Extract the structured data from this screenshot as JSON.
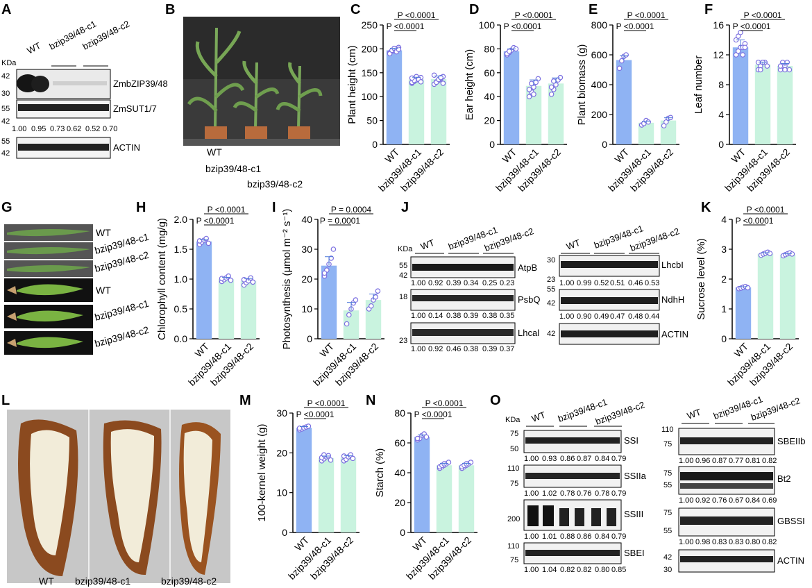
{
  "panel_labels": [
    "A",
    "B",
    "C",
    "D",
    "E",
    "F",
    "G",
    "H",
    "I",
    "J",
    "K",
    "L",
    "M",
    "N",
    "O"
  ],
  "genotypes": [
    "WT",
    "bzip39/48-c1",
    "bzip39/48-c2"
  ],
  "colors": {
    "wt": "#8fb3f3",
    "mutant": "#c9f3df",
    "dot": "#7b6fe0"
  },
  "blot_A": {
    "kda": "KDa",
    "lanes": [
      "WT",
      "bzip39/48-c1",
      "bzip39/48-c2"
    ],
    "rows": [
      {
        "name": "ZmbZIP39/48",
        "markers": [
          "42",
          "30"
        ]
      },
      {
        "name": "ZmSUT1/7",
        "markers": [
          "55",
          "42"
        ],
        "ratios": [
          "1.00",
          "0.95",
          "0.73",
          "0.62",
          "0.52",
          "0.70"
        ]
      },
      {
        "name": "ACTIN",
        "markers": [
          "55",
          "42"
        ]
      }
    ]
  },
  "plant_B": {
    "labels": [
      "WT",
      "bzip39/48-c1",
      "bzip39/48-c2"
    ]
  },
  "leaf_G": {
    "labels": [
      "WT",
      "bzip39/48-c1",
      "bzip39/48-c2",
      "WT",
      "bzip39/48-c1",
      "bzip39/48-c2"
    ]
  },
  "blot_J": {
    "kda": "KDa",
    "left_lanes": [
      "WT",
      "bzip39/48-c1",
      "bzip39/48-c2"
    ],
    "right_lanes": [
      "WT",
      "bzip39/48-c1",
      "bzip39/48-c2"
    ],
    "left": [
      {
        "name": "AtpB",
        "markers": [
          "55",
          "42"
        ],
        "ratios": [
          "1.00",
          "0.92",
          "0.39",
          "0.34",
          "0.25",
          "0.23"
        ]
      },
      {
        "name": "PsbQ",
        "markers": [
          "18"
        ],
        "ratios": [
          "1.00",
          "0.14",
          "0.38",
          "0.39",
          "0.38",
          "0.35"
        ]
      },
      {
        "name": "Lhcal",
        "markers": [
          "23"
        ],
        "ratios": [
          "1.00",
          "0.92",
          "0.46",
          "0.38",
          "0.39",
          "0.37"
        ]
      }
    ],
    "right": [
      {
        "name": "LhcbI",
        "markers": [
          "30",
          "23"
        ],
        "ratios": [
          "1.00",
          "0.99",
          "0.52",
          "0.51",
          "0.46",
          "0.53"
        ]
      },
      {
        "name": "NdhH",
        "markers": [
          "55",
          "42"
        ],
        "ratios": [
          "1.00",
          "0.90",
          "0.49",
          "0.47",
          "0.48",
          "0.44"
        ]
      },
      {
        "name": "ACTIN",
        "markers": [
          "42"
        ]
      }
    ]
  },
  "kernel_L": {
    "labels": [
      "WT",
      "bzip39/48-c1",
      "bzip39/48-c2"
    ]
  },
  "blot_O": {
    "kda": "KDa",
    "left_lanes": [
      "WT",
      "bzip39/48-c1",
      "bzip39/48-c2"
    ],
    "right_lanes": [
      "WT",
      "bzip39/48-c1",
      "bzip39/48-c2"
    ],
    "left": [
      {
        "name": "SSI",
        "markers": [
          "75",
          "50"
        ],
        "ratios": [
          "1.00",
          "0.93",
          "0.86",
          "0.87",
          "0.84",
          "0.79"
        ]
      },
      {
        "name": "SSIIa",
        "markers": [
          "110",
          "75"
        ],
        "ratios": [
          "1.00",
          "1.02",
          "0.78",
          "0.76",
          "0.78",
          "0.79"
        ]
      },
      {
        "name": "SSIII",
        "markers": [
          "200"
        ],
        "ratios": [
          "1.00",
          "1.01",
          "0.88",
          "0.86",
          "0.84",
          "0.79"
        ]
      },
      {
        "name": "SBEI",
        "markers": [
          "110",
          "75"
        ],
        "ratios": [
          "1.00",
          "1.04",
          "0.82",
          "0.82",
          "0.80",
          "0.85"
        ]
      }
    ],
    "right": [
      {
        "name": "SBEIIb",
        "markers": [
          "110",
          "75"
        ],
        "ratios": [
          "1.00",
          "0.96",
          "0.87",
          "0.77",
          "0.81",
          "0.82"
        ]
      },
      {
        "name": "Bt2",
        "markers": [
          "75",
          "55"
        ],
        "ratios": [
          "1.00",
          "0.92",
          "0.76",
          "0.67",
          "0.84",
          "0.69"
        ]
      },
      {
        "name": "GBSSI",
        "markers": [
          "75",
          "55"
        ],
        "ratios": [
          "1.00",
          "0.98",
          "0.83",
          "0.83",
          "0.80",
          "0.82"
        ]
      },
      {
        "name": "ACTIN",
        "markers": [
          "42",
          "30"
        ]
      }
    ]
  },
  "chart_data": [
    {
      "panel": "C",
      "type": "bar",
      "categories": [
        "WT",
        "bzip39/48-c1",
        "bzip39/48-c2"
      ],
      "values": [
        197,
        136,
        137
      ],
      "ylabel": "Plant height (cm)",
      "ylim": [
        0,
        250
      ],
      "yticks": [
        0,
        50,
        100,
        150,
        200,
        250
      ],
      "pvalues": [
        "P <0.0001",
        "P <0.0001"
      ],
      "points": [
        [
          192,
          195,
          198,
          200,
          203,
          190,
          197,
          201,
          194,
          199
        ],
        [
          128,
          132,
          135,
          138,
          140,
          130,
          134,
          142,
          136,
          131,
          139
        ],
        [
          126,
          131,
          134,
          138,
          142,
          145,
          130,
          136,
          140,
          128
        ]
      ]
    },
    {
      "panel": "D",
      "type": "bar",
      "categories": [
        "WT",
        "bzip39/48-c1",
        "bzip39/48-c2"
      ],
      "values": [
        78,
        49,
        51
      ],
      "ylabel": "Ear height (cm)",
      "ylim": [
        0,
        100
      ],
      "yticks": [
        0,
        20,
        40,
        60,
        80,
        100
      ],
      "pvalues": [
        "P <0.0001",
        "P <0.0001"
      ],
      "points": [
        [
          75,
          77,
          79,
          81,
          80,
          76,
          78
        ],
        [
          40,
          44,
          48,
          52,
          55,
          46,
          51,
          42
        ],
        [
          42,
          46,
          50,
          54,
          56,
          48,
          53
        ]
      ]
    },
    {
      "panel": "E",
      "type": "bar",
      "categories": [
        "WT",
        "bzip39/48-c1",
        "bzip39/48-c2"
      ],
      "values": [
        565,
        145,
        160
      ],
      "ylabel": "Plant biomass (g)",
      "ylim": [
        0,
        800
      ],
      "yticks": [
        0,
        200,
        400,
        600,
        800
      ],
      "pvalues": [
        "P <0.0001",
        "P <0.0001"
      ],
      "points": [
        [
          510,
          560,
          590,
          600
        ],
        [
          130,
          140,
          160,
          150
        ],
        [
          125,
          150,
          175,
          180
        ]
      ]
    },
    {
      "panel": "F",
      "type": "bar",
      "categories": [
        "WT",
        "bzip39/48-c1",
        "bzip39/48-c2"
      ],
      "values": [
        13,
        10.7,
        10.5
      ],
      "ylabel": "Leaf number",
      "ylim": [
        0,
        16
      ],
      "yticks": [
        0,
        4,
        8,
        12,
        16
      ],
      "pvalues": [
        "P <0.0001",
        "P <0.0001"
      ],
      "points": [
        [
          12,
          12.5,
          13,
          13,
          13.5,
          14,
          14.5,
          15,
          12,
          13
        ],
        [
          10,
          10.5,
          11,
          11,
          10.5,
          11,
          10,
          11
        ],
        [
          10,
          10.5,
          10.5,
          11,
          10,
          10.5,
          11,
          10
        ]
      ]
    },
    {
      "panel": "H",
      "type": "bar",
      "categories": [
        "WT",
        "bzip39/48-c1",
        "bzip39/48-c2"
      ],
      "values": [
        1.63,
        1.0,
        0.97
      ],
      "ylabel": "Chlorophyll content (mg/g)",
      "ylim": [
        0,
        2.0
      ],
      "yticks": [
        0.0,
        0.5,
        1.0,
        1.5,
        2.0
      ],
      "pvalues": [
        "P <0.0001",
        "P <0.0001"
      ],
      "points": [
        [
          1.58,
          1.62,
          1.65,
          1.68,
          1.6,
          1.64
        ],
        [
          0.96,
          0.99,
          1.02,
          1.05,
          0.98,
          1.01
        ],
        [
          0.9,
          0.94,
          0.97,
          1.02,
          0.95,
          0.99
        ]
      ]
    },
    {
      "panel": "I",
      "type": "bar",
      "categories": [
        "WT",
        "bzip39/48-c1",
        "bzip39/48-c2"
      ],
      "values": [
        24.5,
        9.5,
        13
      ],
      "ylabel": "Photosynthesis (μmol m⁻² s⁻¹)",
      "ylim": [
        0,
        40
      ],
      "yticks": [
        0,
        10,
        20,
        30,
        40
      ],
      "pvalues": [
        "P = 0.0004",
        "P = 0.0001"
      ],
      "points": [
        [
          21,
          23,
          25,
          27,
          30,
          22
        ],
        [
          5,
          8,
          10,
          12,
          13
        ],
        [
          10,
          11,
          13,
          14,
          16
        ]
      ]
    },
    {
      "panel": "K",
      "type": "bar",
      "categories": [
        "WT",
        "bzip39/48-c1",
        "bzip39/48-c2"
      ],
      "values": [
        1.72,
        2.85,
        2.82
      ],
      "ylabel": "Sucrose level (%)",
      "ylim": [
        0,
        4
      ],
      "yticks": [
        0,
        1,
        2,
        3,
        4
      ],
      "pvalues": [
        "P <0.0001",
        "P <0.0001"
      ],
      "points": [
        [
          1.68,
          1.7,
          1.73,
          1.75,
          1.71
        ],
        [
          2.8,
          2.84,
          2.87,
          2.9,
          2.86
        ],
        [
          2.78,
          2.82,
          2.85,
          2.88,
          2.84
        ]
      ]
    },
    {
      "panel": "M",
      "type": "bar",
      "categories": [
        "WT",
        "bzip39/48-c1",
        "bzip39/48-c2"
      ],
      "values": [
        26.3,
        18.7,
        18.8
      ],
      "ylabel": "100-kernel weight (g)",
      "ylim": [
        0,
        30
      ],
      "yticks": [
        0,
        10,
        20,
        30
      ],
      "pvalues": [
        "P <0.0001",
        "P <0.0001"
      ],
      "points": [
        [
          25.8,
          26.0,
          26.3,
          26.5,
          26.7,
          26.2
        ],
        [
          18.0,
          18.5,
          19.0,
          19.3,
          18.2,
          18.8,
          19.5
        ],
        [
          18.0,
          18.4,
          19.0,
          19.5,
          18.6,
          19.2
        ]
      ]
    },
    {
      "panel": "N",
      "type": "bar",
      "categories": [
        "WT",
        "bzip39/48-c1",
        "bzip39/48-c2"
      ],
      "values": [
        64,
        45,
        45
      ],
      "ylabel": "Starch (%)",
      "ylim": [
        0,
        80
      ],
      "yticks": [
        0,
        20,
        40,
        60,
        80
      ],
      "pvalues": [
        "P <0.0001",
        "P <0.0001"
      ],
      "points": [
        [
          62,
          63,
          65,
          66,
          64,
          63
        ],
        [
          43,
          44,
          45,
          46,
          47,
          44,
          45,
          46
        ],
        [
          43,
          44,
          45,
          46,
          47,
          44,
          45,
          46
        ]
      ]
    }
  ]
}
